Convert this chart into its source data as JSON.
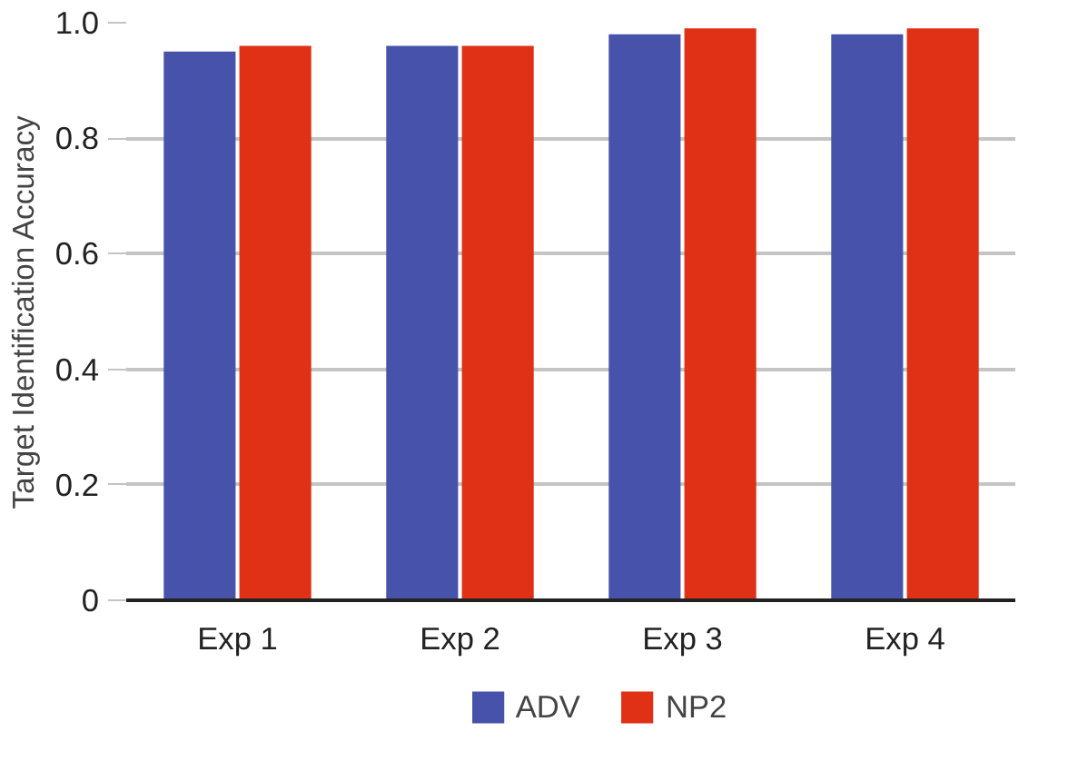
{
  "chart_data": {
    "type": "bar",
    "ylabel": "Target Identification Accuracy",
    "categories": [
      "Exp 1",
      "Exp 2",
      "Exp 3",
      "Exp 4"
    ],
    "series": [
      {
        "name": "ADV",
        "color": "#4753aa",
        "values": [
          0.95,
          0.96,
          0.98,
          0.98
        ]
      },
      {
        "name": "NP2",
        "color": "#e03015",
        "values": [
          0.96,
          0.96,
          0.99,
          0.99
        ]
      }
    ],
    "ylim": [
      0,
      1.0
    ],
    "yticks": [
      {
        "value": 0,
        "label": "0"
      },
      {
        "value": 0.2,
        "label": "0.2"
      },
      {
        "value": 0.4,
        "label": "0.4"
      },
      {
        "value": 0.6,
        "label": "0.6"
      },
      {
        "value": 0.8,
        "label": "0.8"
      },
      {
        "value": 1.0,
        "label": "1.0"
      }
    ],
    "grid": "y",
    "legend": "bottom"
  }
}
